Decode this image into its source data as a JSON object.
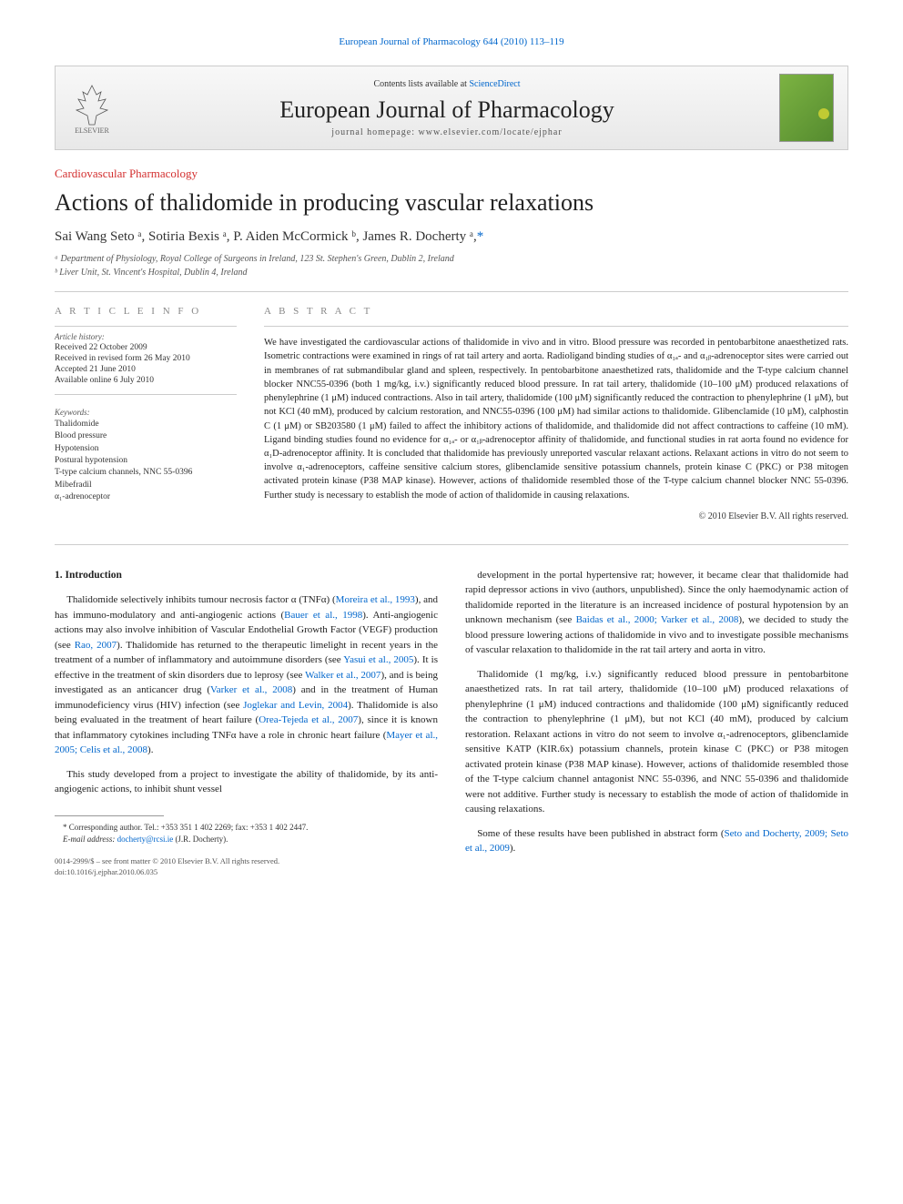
{
  "top_link": "European Journal of Pharmacology 644 (2010) 113–119",
  "masthead": {
    "contents_prefix": "Contents lists available at ",
    "contents_link": "ScienceDirect",
    "journal_name": "European Journal of Pharmacology",
    "homepage_prefix": "journal homepage: ",
    "homepage": "www.elsevier.com/locate/ejphar",
    "elsevier": "ELSEVIER"
  },
  "section_tag": "Cardiovascular Pharmacology",
  "title": "Actions of thalidomide in producing vascular relaxations",
  "authors_html": "Sai Wang Seto ᵃ, Sotiria Bexis ᵃ, P. Aiden McCormick ᵇ, James R. Docherty ᵃ,",
  "corr_mark": "*",
  "affiliations": [
    "ᵃ Department of Physiology, Royal College of Surgeons in Ireland, 123 St. Stephen's Green, Dublin 2, Ireland",
    "ᵇ Liver Unit, St. Vincent's Hospital, Dublin 4, Ireland"
  ],
  "info": {
    "heading": "A R T I C L E   I N F O",
    "history_label": "Article history:",
    "history": [
      "Received 22 October 2009",
      "Received in revised form 26 May 2010",
      "Accepted 21 June 2010",
      "Available online 6 July 2010"
    ],
    "keywords_label": "Keywords:",
    "keywords": [
      "Thalidomide",
      "Blood pressure",
      "Hypotension",
      "Postural hypotension",
      "T-type calcium channels, NNC 55-0396",
      "Mibefradil",
      "α₁-adrenoceptor"
    ]
  },
  "abstract": {
    "heading": "A B S T R A C T",
    "text": "We have investigated the cardiovascular actions of thalidomide in vivo and in vitro. Blood pressure was recorded in pentobarbitone anaesthetized rats. Isometric contractions were examined in rings of rat tail artery and aorta. Radioligand binding studies of α₁ₐ- and α₁ᵦ-adrenoceptor sites were carried out in membranes of rat submandibular gland and spleen, respectively. In pentobarbitone anaesthetized rats, thalidomide and the T-type calcium channel blocker NNC55-0396 (both 1 mg/kg, i.v.) significantly reduced blood pressure. In rat tail artery, thalidomide (10–100 μM) produced relaxations of phenylephrine (1 μM) induced contractions. Also in tail artery, thalidomide (100 μM) significantly reduced the contraction to phenylephrine (1 μM), but not KCl (40 mM), produced by calcium restoration, and NNC55-0396 (100 μM) had similar actions to thalidomide. Glibenclamide (10 μM), calphostin C (1 μM) or SB203580 (1 μM) failed to affect the inhibitory actions of thalidomide, and thalidomide did not affect contractions to caffeine (10 mM). Ligand binding studies found no evidence for α₁ₐ- or α₁ᵦ-adrenoceptor affinity of thalidomide, and functional studies in rat aorta found no evidence for α₁D-adrenoceptor affinity. It is concluded that thalidomide has previously unreported vascular relaxant actions. Relaxant actions in vitro do not seem to involve α₁-adrenoceptors, caffeine sensitive calcium stores, glibenclamide sensitive potassium channels, protein kinase C (PKC) or P38 mitogen activated protein kinase (P38 MAP kinase). However, actions of thalidomide resembled those of the T-type calcium channel blocker NNC 55-0396. Further study is necessary to establish the mode of action of thalidomide in causing relaxations.",
    "copyright": "© 2010 Elsevier B.V. All rights reserved."
  },
  "body": {
    "intro_heading": "1. Introduction",
    "left": [
      {
        "t": "Thalidomide selectively inhibits tumour necrosis factor α (TNFα) (",
        "r": "Moreira et al., 1993",
        "t2": "), and has immuno-modulatory and anti-angiogenic actions (",
        "r2": "Bauer et al., 1998",
        "t3": "). Anti-angiogenic actions may also involve inhibition of Vascular Endothelial Growth Factor (VEGF) production (see ",
        "r3": "Rao, 2007",
        "t4": "). Thalidomide has returned to the therapeutic limelight in recent years in the treatment of a number of inflammatory and autoimmune disorders (see ",
        "r4": "Yasui et al., 2005",
        "t5": "). It is effective in the treatment of skin disorders due to leprosy (see ",
        "r5": "Walker et al., 2007",
        "t6": "), and is being investigated as an anticancer drug (",
        "r6": "Varker et al., 2008",
        "t7": ") and in the treatment of Human immunodeficiency virus (HIV) infection (see ",
        "r7": "Joglekar and Levin, 2004",
        "t8": "). Thalidomide is also being evaluated in the treatment of heart failure (",
        "r8": "Orea-Tejeda et al., 2007",
        "t9": "), since it is known that inflammatory cytokines including TNFα have a role in chronic heart failure (",
        "r9": "Mayer et al., 2005; Celis et al., 2008",
        "t10": ")."
      },
      {
        "plain": "This study developed from a project to investigate the ability of thalidomide, by its anti-angiogenic actions, to inhibit shunt vessel"
      }
    ],
    "right": [
      {
        "t": "development in the portal hypertensive rat; however, it became clear that thalidomide had rapid depressor actions in vivo (authors, unpublished). Since the only haemodynamic action of thalidomide reported in the literature is an increased incidence of postural hypotension by an unknown mechanism (see ",
        "r": "Baidas et al., 2000; Varker et al., 2008",
        "t2": "), we decided to study the blood pressure lowering actions of thalidomide in vivo and to investigate possible mechanisms of vascular relaxation to thalidomide in the rat tail artery and aorta in vitro."
      },
      {
        "plain": "Thalidomide (1 mg/kg, i.v.) significantly reduced blood pressure in pentobarbitone anaesthetized rats. In rat tail artery, thalidomide (10–100 μM) produced relaxations of phenylephrine (1 μM) induced contractions and thalidomide (100 μM) significantly reduced the contraction to phenylephrine (1 μM), but not KCl (40 mM), produced by calcium restoration. Relaxant actions in vitro do not seem to involve α₁-adrenoceptors, glibenclamide sensitive KATP (KIR.6x) potassium channels, protein kinase C (PKC) or P38 mitogen activated protein kinase (P38 MAP kinase). However, actions of thalidomide resembled those of the T-type calcium channel antagonist NNC 55-0396, and NNC 55-0396 and thalidomide were not additive. Further study is necessary to establish the mode of action of thalidomide in causing relaxations."
      },
      {
        "t": "Some of these results have been published in abstract form (",
        "r": "Seto and Docherty, 2009; Seto et al., 2009",
        "t2": ")."
      }
    ]
  },
  "footer": {
    "corr": "* Corresponding author. Tel.: +353 351 1 402 2269; fax: +353 1 402 2447.",
    "email_label": "E-mail address:",
    "email": "docherty@rcsi.ie",
    "email_who": "(J.R. Docherty).",
    "issn": "0014-2999/$ – see front matter © 2010 Elsevier B.V. All rights reserved.",
    "doi": "doi:10.1016/j.ejphar.2010.06.035"
  }
}
